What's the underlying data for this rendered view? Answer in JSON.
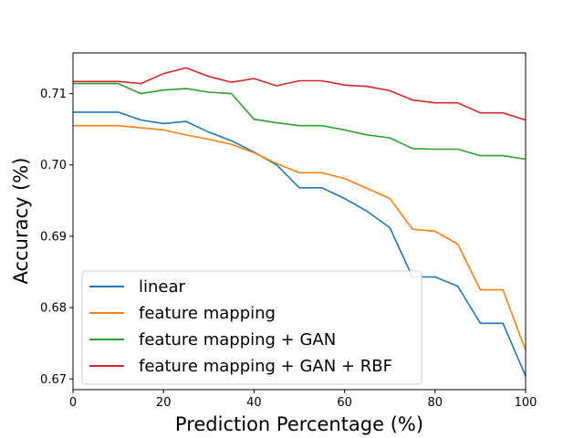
{
  "chart_data": {
    "type": "line",
    "title": "",
    "xlabel": "Prediction Percentage (%)",
    "ylabel": "Accuracy (%)",
    "xlim": [
      0,
      100
    ],
    "ylim": [
      0.6685,
      0.7157
    ],
    "x_ticks": [
      0,
      20,
      40,
      60,
      80,
      100
    ],
    "y_ticks": [
      0.67,
      0.68,
      0.69,
      0.7,
      0.71
    ],
    "x_tick_labels": [
      "0",
      "20",
      "40",
      "60",
      "80",
      "100"
    ],
    "y_tick_labels": [
      "0.67",
      "0.68",
      "0.69",
      "0.70",
      "0.71"
    ],
    "grid": false,
    "legend_position": "lower-left",
    "x": [
      0,
      5,
      10,
      15,
      20,
      25,
      30,
      35,
      40,
      45,
      50,
      55,
      60,
      65,
      70,
      75,
      80,
      85,
      90,
      95,
      100
    ],
    "series": [
      {
        "name": "linear",
        "color": "#1f77b4",
        "values": [
          0.7074,
          0.7074,
          0.7074,
          0.7063,
          0.7058,
          0.7061,
          0.7046,
          0.7034,
          0.7018,
          0.7,
          0.6968,
          0.6968,
          0.6953,
          0.6935,
          0.6912,
          0.6843,
          0.6843,
          0.683,
          0.6778,
          0.6778,
          0.6704
        ]
      },
      {
        "name": "feature mapping",
        "color": "#ff7f0e",
        "values": [
          0.7055,
          0.7055,
          0.7055,
          0.7052,
          0.7049,
          0.7042,
          0.7036,
          0.7029,
          0.7017,
          0.7002,
          0.6989,
          0.6989,
          0.6981,
          0.6967,
          0.6953,
          0.691,
          0.6907,
          0.6889,
          0.6825,
          0.6825,
          0.674
        ]
      },
      {
        "name": "feature mapping + GAN",
        "color": "#2ca02c",
        "values": [
          0.7114,
          0.7114,
          0.7114,
          0.71,
          0.7105,
          0.7107,
          0.7102,
          0.71,
          0.7064,
          0.7059,
          0.7055,
          0.7055,
          0.7049,
          0.7042,
          0.7038,
          0.7023,
          0.7022,
          0.7022,
          0.7013,
          0.7013,
          0.7008
        ]
      },
      {
        "name": "feature mapping + GAN + RBF",
        "color": "#d62728",
        "values": [
          0.7117,
          0.7117,
          0.7117,
          0.7114,
          0.7128,
          0.7136,
          0.7124,
          0.7116,
          0.7121,
          0.7111,
          0.7118,
          0.7118,
          0.7112,
          0.711,
          0.7104,
          0.7091,
          0.7087,
          0.7087,
          0.7073,
          0.7073,
          0.7063
        ]
      }
    ]
  }
}
